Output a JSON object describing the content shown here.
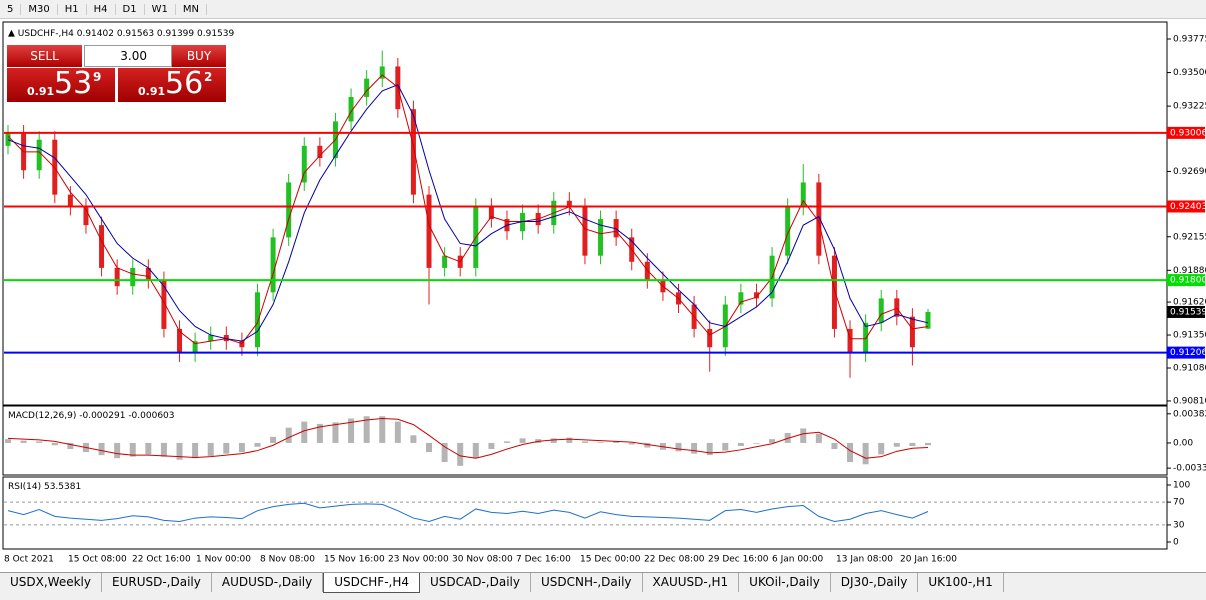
{
  "toolbar": {
    "periods": [
      "5",
      "M30",
      "H1",
      "H4",
      "D1",
      "W1",
      "MN"
    ]
  },
  "trade_panel": {
    "sell": "SELL",
    "buy": "BUY",
    "lot": "3.00",
    "sell_prefix": "0.91",
    "sell_big": "53",
    "sell_small": "9",
    "buy_prefix": "0.91",
    "buy_big": "56",
    "buy_small": "2"
  },
  "tabs": [
    "USDX,Weekly",
    "EURUSD-,Daily",
    "AUDUSD-,Daily",
    "USDCHF-,H4",
    "USDCAD-,Daily",
    "USDCNH-,Daily",
    "XAUUSD-,H1",
    "UKOil-,Daily",
    "DJ30-,Daily",
    "UK100-,H1"
  ],
  "active_tab": "USDCHF-,H4",
  "chart_data": {
    "type": "candlestick",
    "symbol": "USDCHF-,H4",
    "ohlc": {
      "up_color": "#22c022",
      "down_color": "#e02020",
      "open": [
        0.929,
        0.93,
        0.927,
        0.9295,
        0.925,
        0.924,
        0.9225,
        0.919,
        0.9175,
        0.919,
        0.918,
        0.914,
        0.912,
        0.913,
        0.9135,
        0.913,
        0.9125,
        0.917,
        0.9215,
        0.926,
        0.929,
        0.928,
        0.931,
        0.933,
        0.9345,
        0.9355,
        0.932,
        0.925,
        0.919,
        0.92,
        0.919,
        0.924,
        0.923,
        0.922,
        0.9235,
        0.9225,
        0.9245,
        0.924,
        0.92,
        0.923,
        0.9215,
        0.9195,
        0.918,
        0.917,
        0.916,
        0.914,
        0.9125,
        0.916,
        0.917,
        0.9165,
        0.92,
        0.924,
        0.926,
        0.92,
        0.914,
        0.912,
        0.9145,
        0.9165,
        0.915,
        0.91402
      ],
      "high": [
        0.9307,
        0.9307,
        0.9302,
        0.9302,
        0.9257,
        0.9247,
        0.9232,
        0.9197,
        0.9197,
        0.9197,
        0.9187,
        0.9147,
        0.9137,
        0.9142,
        0.9142,
        0.9137,
        0.9177,
        0.9222,
        0.9267,
        0.9297,
        0.9297,
        0.9317,
        0.9337,
        0.9352,
        0.9368,
        0.9362,
        0.9327,
        0.9257,
        0.9207,
        0.9207,
        0.9247,
        0.9247,
        0.9237,
        0.9242,
        0.9242,
        0.9252,
        0.9252,
        0.9247,
        0.9237,
        0.9237,
        0.9222,
        0.9202,
        0.9187,
        0.9177,
        0.9167,
        0.9147,
        0.9167,
        0.9177,
        0.9177,
        0.9207,
        0.9247,
        0.9275,
        0.9267,
        0.9207,
        0.9147,
        0.9152,
        0.9172,
        0.9172,
        0.9157,
        0.91563
      ],
      "low": [
        0.9283,
        0.9263,
        0.9263,
        0.9243,
        0.9233,
        0.9218,
        0.9183,
        0.9168,
        0.9168,
        0.9173,
        0.9133,
        0.9113,
        0.9113,
        0.9123,
        0.9123,
        0.9118,
        0.9118,
        0.9163,
        0.9208,
        0.9253,
        0.9273,
        0.9273,
        0.9303,
        0.9323,
        0.9338,
        0.9313,
        0.9243,
        0.916,
        0.9183,
        0.9183,
        0.9183,
        0.9223,
        0.9213,
        0.9213,
        0.9218,
        0.9218,
        0.9233,
        0.9193,
        0.9193,
        0.9208,
        0.9188,
        0.9173,
        0.9163,
        0.9153,
        0.9133,
        0.9105,
        0.9118,
        0.9153,
        0.9158,
        0.9158,
        0.9193,
        0.9233,
        0.9193,
        0.9133,
        0.91,
        0.9113,
        0.9138,
        0.9143,
        0.911,
        0.91399
      ],
      "close": [
        0.93,
        0.927,
        0.9295,
        0.925,
        0.924,
        0.9225,
        0.919,
        0.9175,
        0.919,
        0.918,
        0.914,
        0.912,
        0.913,
        0.9135,
        0.913,
        0.9125,
        0.917,
        0.9215,
        0.926,
        0.929,
        0.928,
        0.931,
        0.933,
        0.9345,
        0.9355,
        0.932,
        0.925,
        0.919,
        0.92,
        0.919,
        0.924,
        0.923,
        0.922,
        0.9235,
        0.9225,
        0.9245,
        0.924,
        0.92,
        0.923,
        0.9215,
        0.9195,
        0.918,
        0.917,
        0.916,
        0.914,
        0.9125,
        0.916,
        0.917,
        0.9165,
        0.92,
        0.924,
        0.926,
        0.92,
        0.914,
        0.912,
        0.9145,
        0.9165,
        0.915,
        0.9125,
        0.91539
      ]
    },
    "ma": [
      {
        "color": "#cc0000",
        "values": [
          0.9298,
          0.9285,
          0.9285,
          0.9272,
          0.9252,
          0.9238,
          0.9212,
          0.919,
          0.9185,
          0.9183,
          0.9162,
          0.9138,
          0.9128,
          0.913,
          0.9132,
          0.9128,
          0.9145,
          0.9185,
          0.923,
          0.9268,
          0.9282,
          0.9295,
          0.9318,
          0.9335,
          0.9348,
          0.9338,
          0.929,
          0.9225,
          0.92,
          0.9195,
          0.9215,
          0.9232,
          0.9228,
          0.9228,
          0.923,
          0.9235,
          0.924,
          0.9222,
          0.9218,
          0.922,
          0.9205,
          0.9188,
          0.9175,
          0.9165,
          0.915,
          0.9135,
          0.9142,
          0.9162,
          0.9166,
          0.9182,
          0.9218,
          0.9245,
          0.9228,
          0.9172,
          0.9132,
          0.9132,
          0.9152,
          0.9157,
          0.914,
          0.9142
        ]
      },
      {
        "color": "#0000aa",
        "values": [
          0.9295,
          0.929,
          0.9288,
          0.928,
          0.9265,
          0.925,
          0.923,
          0.921,
          0.9198,
          0.919,
          0.9175,
          0.9155,
          0.9142,
          0.9135,
          0.9132,
          0.913,
          0.9138,
          0.916,
          0.9195,
          0.9235,
          0.9262,
          0.9282,
          0.9302,
          0.932,
          0.9335,
          0.934,
          0.9315,
          0.927,
          0.923,
          0.921,
          0.9208,
          0.9218,
          0.9225,
          0.9228,
          0.9228,
          0.9232,
          0.9236,
          0.923,
          0.9225,
          0.9222,
          0.9212,
          0.9198,
          0.9185,
          0.9172,
          0.916,
          0.9145,
          0.9142,
          0.915,
          0.9158,
          0.917,
          0.9195,
          0.9225,
          0.9232,
          0.9205,
          0.9165,
          0.9142,
          0.9145,
          0.9152,
          0.9148,
          0.9145
        ]
      }
    ],
    "ylim": [
      0.90785,
      0.93906
    ],
    "yticks": [
      0.93775,
      {
        "value": 0.935,
        "label": "0.93500"
      },
      0.93225,
      {
        "value": 0.9269,
        "label": "0.92690"
      },
      0.92155,
      {
        "value": 0.9188,
        "label": "0.91880"
      },
      {
        "value": 0.9162,
        "label": "0.91620"
      },
      {
        "value": 0.9135,
        "label": "0.91350"
      },
      {
        "value": 0.9108,
        "label": "0.91080"
      },
      {
        "value": 0.9081,
        "label": "0.90810"
      }
    ],
    "levels": [
      {
        "value": 0.93006,
        "color": "#ff0000"
      },
      {
        "value": 0.92403,
        "color": "#ff0000"
      },
      {
        "value": 0.918,
        "label": "0.91800",
        "color": "#00e000"
      },
      {
        "value": 0.91206,
        "color": "#0000ff"
      }
    ],
    "x_labels": [
      "8 Oct 2021",
      "15 Oct 08:00",
      "22 Oct 16:00",
      "1 Nov 00:00",
      "8 Nov 08:00",
      "15 Nov 16:00",
      "23 Nov 00:00",
      "30 Nov 08:00",
      "7 Dec 16:00",
      "15 Dec 00:00",
      "22 Dec 08:00",
      "29 Dec 16:00",
      "6 Jan 00:00",
      "13 Jan 08:00",
      "20 Jan 16:00"
    ],
    "macd": {
      "title": "MACD(12,26,9)",
      "histogram_color": "#b4b4b4",
      "signal_color": "#cc0000",
      "histogram": [
        0.0005,
        0.0003,
        0.0002,
        -0.0003,
        -0.0008,
        -0.0012,
        -0.0016,
        -0.002,
        -0.0018,
        -0.0015,
        -0.0018,
        -0.0022,
        -0.002,
        -0.0017,
        -0.0014,
        -0.0012,
        -0.0005,
        0.0008,
        0.002,
        0.0028,
        0.0025,
        0.0027,
        0.0032,
        0.0035,
        0.0035,
        0.0028,
        0.001,
        -0.0012,
        -0.0025,
        -0.003,
        -0.002,
        -0.0008,
        0.0002,
        0.0006,
        0.0005,
        0.0006,
        0.0007,
        0.0002,
        0.0001,
        0.0002,
        -0.0002,
        -0.0006,
        -0.0009,
        -0.0011,
        -0.0014,
        -0.0016,
        -0.001,
        -0.0004,
        -0.0001,
        0.0005,
        0.0013,
        0.0019,
        0.0012,
        -0.0008,
        -0.0025,
        -0.0028,
        -0.0015,
        -0.0005,
        -0.0004,
        -0.000291
      ],
      "signal": [
        0.0006,
        0.0005,
        0.0004,
        0.0002,
        -0.0002,
        -0.0006,
        -0.001,
        -0.0014,
        -0.0016,
        -0.0016,
        -0.0017,
        -0.0018,
        -0.0019,
        -0.0018,
        -0.0016,
        -0.0014,
        -0.001,
        -0.0003,
        0.0007,
        0.0016,
        0.0021,
        0.0024,
        0.0027,
        0.003,
        0.0032,
        0.0031,
        0.0024,
        0.001,
        -0.0005,
        -0.0017,
        -0.002,
        -0.0015,
        -0.0008,
        -0.0002,
        0.0002,
        0.0004,
        0.0005,
        0.0004,
        0.0003,
        0.0002,
        0.0001,
        -0.0002,
        -0.0005,
        -0.0008,
        -0.001,
        -0.0013,
        -0.0012,
        -0.0009,
        -0.0005,
        -0.0001,
        0.0006,
        0.0012,
        0.0014,
        0.0005,
        -0.001,
        -0.002,
        -0.0018,
        -0.0011,
        -0.0007,
        -0.000603
      ],
      "ylim": [
        -0.00407,
        0.00471
      ],
      "yticks": [
        0.00382,
        {
          "value": 0,
          "label": "0.00"
        },
        -0.0033
      ]
    },
    "rsi": {
      "title": "RSI(14)",
      "color": "#1e6fd0",
      "ylim": [
        -10.5,
        112.3
      ],
      "yticks": [
        100,
        70,
        30,
        0
      ],
      "levels": [
        70,
        30
      ],
      "values": [
        55,
        48,
        57,
        45,
        42,
        40,
        38,
        41,
        46,
        44,
        38,
        36,
        42,
        44,
        43,
        41,
        55,
        62,
        66,
        68,
        60,
        63,
        66,
        67,
        66,
        55,
        42,
        36,
        45,
        40,
        58,
        52,
        50,
        54,
        50,
        56,
        52,
        42,
        53,
        48,
        45,
        44,
        43,
        42,
        40,
        38,
        55,
        57,
        52,
        58,
        62,
        64,
        45,
        36,
        40,
        50,
        55,
        48,
        42,
        53.5381
      ]
    }
  }
}
